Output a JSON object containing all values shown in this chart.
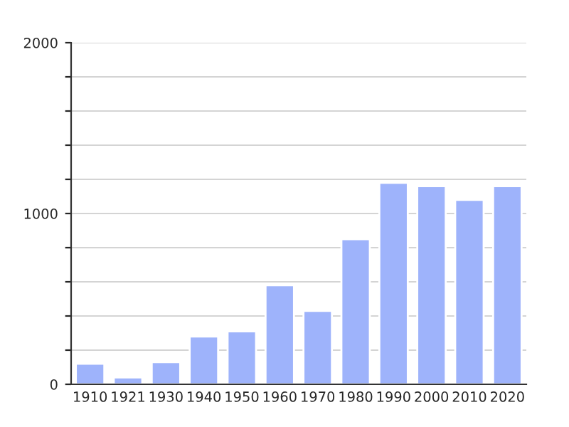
{
  "chart_data": {
    "type": "bar",
    "categories": [
      "1910",
      "1921",
      "1930",
      "1940",
      "1950",
      "1960",
      "1970",
      "1980",
      "1990",
      "2000",
      "2010",
      "2020"
    ],
    "values": [
      120,
      40,
      130,
      280,
      310,
      580,
      430,
      850,
      1180,
      1160,
      1080,
      1160
    ],
    "color": "#9eb3fb",
    "ylim": [
      0,
      2000
    ],
    "yticks": [
      0,
      {
        "value": 200,
        "label": null
      },
      {
        "value": 400,
        "label": null
      },
      {
        "value": 600,
        "label": null
      },
      {
        "value": 800,
        "label": null
      },
      1000,
      {
        "value": 1200,
        "label": null
      },
      {
        "value": 1400,
        "label": null
      },
      {
        "value": 1600,
        "label": null
      },
      {
        "value": 1800,
        "label": null
      },
      2000
    ],
    "grid": "y"
  }
}
